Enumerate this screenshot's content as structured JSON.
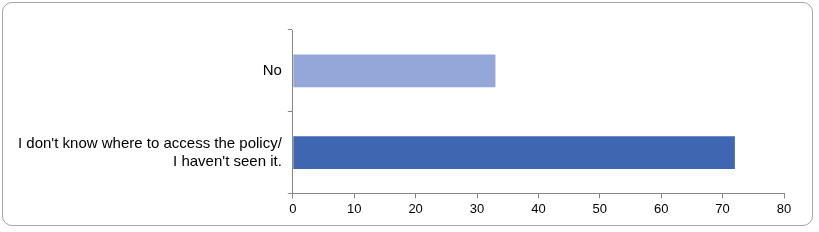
{
  "chart_data": {
    "type": "bar",
    "orientation": "horizontal",
    "categories": [
      "No",
      "I don't know where to access the policy/ I haven't seen it."
    ],
    "values": [
      33,
      72
    ],
    "colors": [
      "#95a6d9",
      "#3f66b0"
    ],
    "xlim": [
      0,
      80
    ],
    "xticks": [
      0,
      10,
      20,
      30,
      40,
      50,
      60,
      70,
      80
    ],
    "grid": false
  }
}
